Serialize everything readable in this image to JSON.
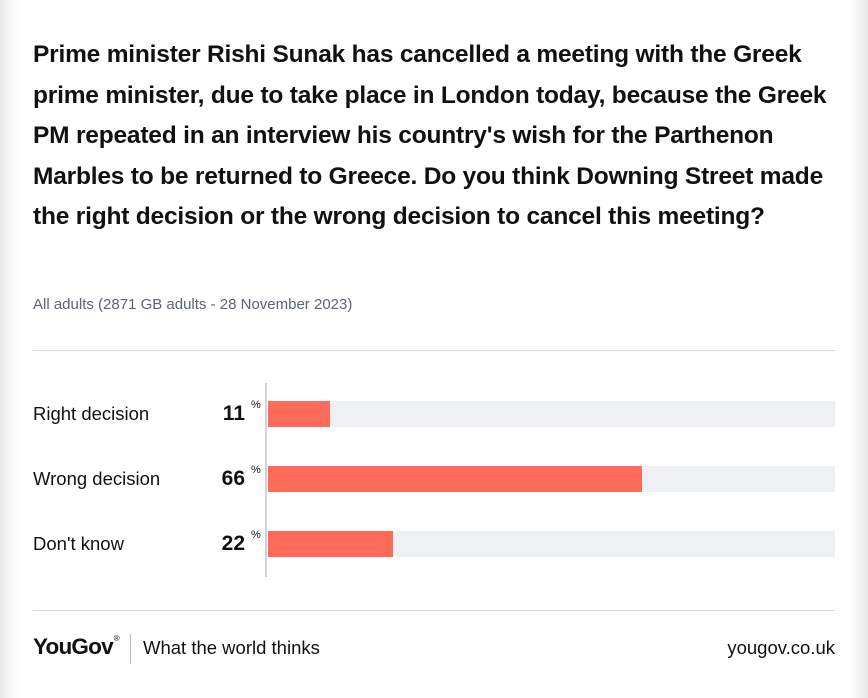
{
  "chart_data": {
    "type": "bar",
    "orientation": "horizontal",
    "title": "Prime minister Rishi Sunak has cancelled a meeting with the Greek prime minister, due to take place in London today, because the Greek PM repeated in an interview his country's wish for the Parthenon Marbles to be returned to Greece. Do you think Downing Street made the right decision or the wrong decision to cancel this meeting?",
    "subtitle": "All adults (2871 GB adults - 28 November 2023)",
    "categories": [
      "Right decision",
      "Wrong decision",
      "Don't know"
    ],
    "values": [
      11,
      66,
      22
    ],
    "value_labels": [
      "11",
      "66",
      "22"
    ],
    "unit": "%",
    "xlim": [
      0,
      100
    ],
    "grid": false,
    "bar_color": "#ff6b5b",
    "track_color": "#eef0f3"
  },
  "footer": {
    "brand": "YouGov",
    "brand_mark": "®",
    "tagline": "What the world thinks",
    "site": "yougov.co.uk"
  }
}
